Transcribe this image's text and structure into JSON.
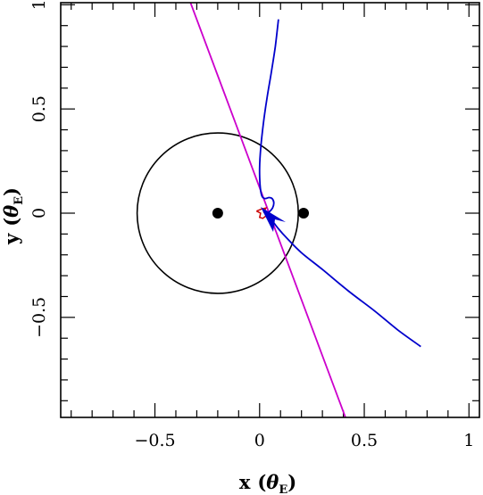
{
  "chart_data": {
    "type": "line",
    "xlabel": {
      "main": "x",
      "theta": "θ",
      "sub": "E"
    },
    "ylabel": {
      "main": "y",
      "theta": "θ",
      "sub": "E"
    },
    "xlim": [
      -0.95,
      1.05
    ],
    "ylim": [
      -0.98,
      1.01
    ],
    "x_ticks_major": [
      -0.5,
      0,
      0.5,
      1
    ],
    "x_tick_labels": [
      "−0.5",
      "0",
      "0.5",
      "1"
    ],
    "y_ticks_major": [
      -0.5,
      0,
      0.5,
      1
    ],
    "y_tick_labels": [
      "−0.5",
      "0",
      "0.5",
      "1"
    ],
    "minor_tick_step": 0.1,
    "grid": false,
    "colors": {
      "caustic_circle": "#000000",
      "trajectory": "#0000cc",
      "line": "#cc00cc",
      "central_caustic": "#cc0000",
      "lens": "#000000"
    },
    "lenses": [
      {
        "x": -0.2,
        "y": 0.0
      },
      {
        "x": 0.21,
        "y": 0.0
      }
    ],
    "circle": {
      "cx": -0.2,
      "cy": 0.0,
      "r": 0.385
    },
    "straight_line": {
      "points": [
        [
          -0.33,
          1.01
        ],
        [
          0.41,
          -0.98
        ]
      ]
    },
    "trajectory": {
      "points": [
        [
          0.09,
          0.93
        ],
        [
          0.075,
          0.8
        ],
        [
          0.055,
          0.67
        ],
        [
          0.035,
          0.55
        ],
        [
          0.018,
          0.43
        ],
        [
          0.006,
          0.32
        ],
        [
          0.0,
          0.22
        ],
        [
          0.002,
          0.14
        ],
        [
          0.01,
          0.085
        ],
        [
          0.025,
          0.07
        ],
        [
          0.045,
          0.075
        ],
        [
          0.06,
          0.07
        ],
        [
          0.068,
          0.05
        ],
        [
          0.062,
          0.025
        ],
        [
          0.045,
          0.005
        ],
        [
          0.035,
          0.0
        ],
        [
          0.04,
          -0.01
        ],
        [
          0.06,
          -0.035
        ],
        [
          0.09,
          -0.075
        ],
        [
          0.13,
          -0.12
        ],
        [
          0.2,
          -0.19
        ],
        [
          0.3,
          -0.27
        ],
        [
          0.42,
          -0.37
        ],
        [
          0.55,
          -0.47
        ],
        [
          0.66,
          -0.56
        ],
        [
          0.77,
          -0.64
        ]
      ]
    },
    "central_caustic": {
      "points": [
        [
          -0.015,
          0.01
        ],
        [
          0.01,
          0.02
        ],
        [
          0.03,
          0.025
        ],
        [
          0.02,
          0.005
        ],
        [
          0.035,
          -0.01
        ],
        [
          0.015,
          -0.025
        ],
        [
          0.0,
          -0.02
        ],
        [
          0.005,
          0.0
        ],
        [
          -0.015,
          0.01
        ]
      ]
    },
    "source_marker": {
      "x": 0.065,
      "y": -0.03
    }
  }
}
